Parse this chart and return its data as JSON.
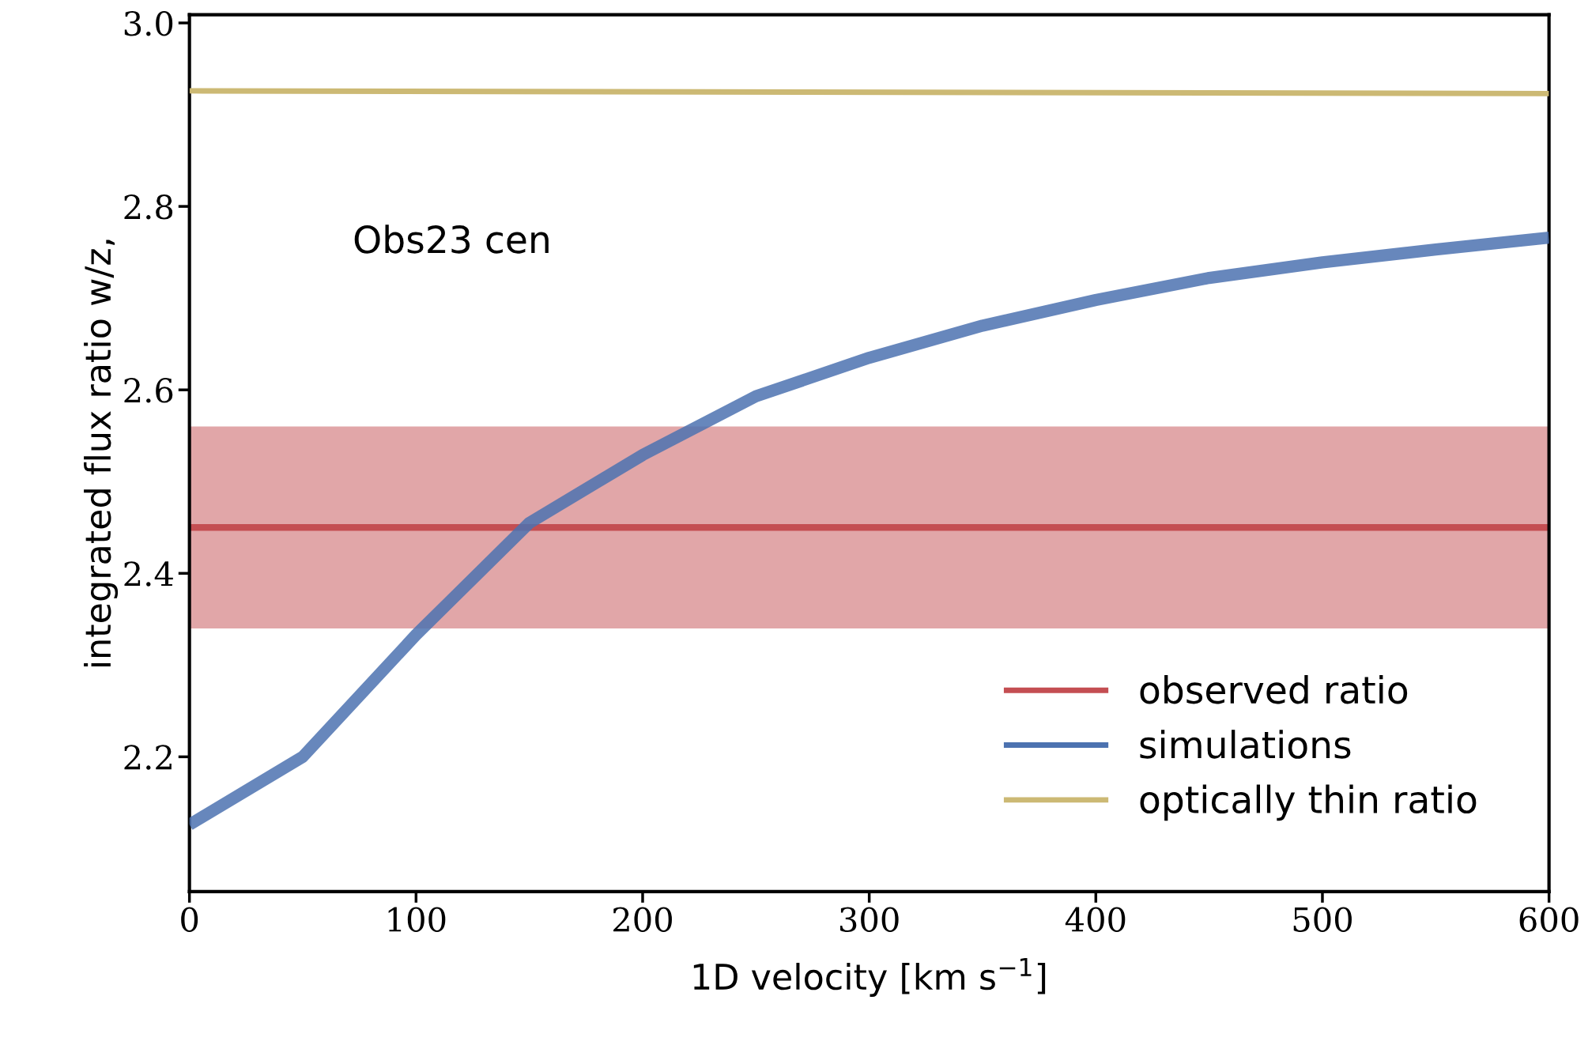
{
  "chart_data": {
    "type": "line",
    "xlabel": "1D velocity [km s$^{−1}$]",
    "ylabel": "integrated flux ratio w/z,",
    "xlim": [
      0,
      600
    ],
    "ylim": [
      2.053,
      3.009
    ],
    "xticks": [
      0,
      100,
      200,
      300,
      400,
      500,
      600
    ],
    "yticks": [
      2.2,
      2.4,
      2.6,
      2.8,
      {
        "value": 3.0,
        "label": "3.0"
      }
    ],
    "grid": false,
    "legend": "bottom right",
    "marker": "none",
    "line_style": "solid",
    "annotations": [
      "Obs23 cen"
    ],
    "series": [
      {
        "name": "observed ratio",
        "color": "#c44e52",
        "x": [
          0,
          600
        ],
        "values": [
          2.45,
          2.45
        ],
        "lower": [
          2.34,
          2.34
        ],
        "upper": [
          2.56,
          2.56
        ]
      },
      {
        "name": "simulations",
        "color": "#4c72b0",
        "x": [
          0,
          50,
          100,
          150,
          200,
          250,
          300,
          350,
          400,
          450,
          500,
          550,
          600
        ],
        "values": [
          2.126,
          2.2,
          2.333,
          2.455,
          2.529,
          2.593,
          2.635,
          2.67,
          2.698,
          2.722,
          2.739,
          2.753,
          2.766
        ]
      },
      {
        "name": "optically thin ratio",
        "color": "#ccb974",
        "x": [
          0,
          600
        ],
        "values": [
          2.926,
          2.923
        ]
      }
    ]
  }
}
